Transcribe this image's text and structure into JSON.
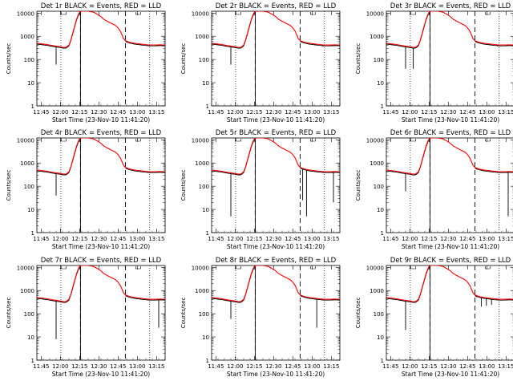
{
  "chart_data": [
    {
      "type": "line",
      "title": "Det 1r BLACK = Events, RED = LLD",
      "xlabel": "Start Time (23-Nov-10 11:41:20)",
      "ylabel": "Counts/sec",
      "xticks": [
        "11:45",
        "12:00",
        "12:15",
        "12:30",
        "12:45",
        "13:00",
        "13:15"
      ],
      "xrange_min": [
        0,
        100
      ],
      "ytick_labels": [
        "1",
        "10",
        "100",
        "1000",
        "10000"
      ],
      "ylim": [
        1,
        12000
      ],
      "yscale": "log",
      "vlines_dotted_min": [
        18.7,
        88
      ],
      "vlines_dashed_min": [
        34,
        69
      ],
      "events_dips": [
        [
          15,
          25,
          60
        ],
        [
          34,
          500,
          1
        ]
      ],
      "series": [
        {
          "name": "BLACK = Events",
          "color": "#000000"
        },
        {
          "name": "RED = LLD",
          "color": "#ff0000"
        }
      ]
    },
    {
      "type": "line",
      "title": "Det 2r BLACK = Events, RED = LLD",
      "xlabel": "Start Time (23-Nov-10 11:41:20)",
      "ylabel": "Counts/sec",
      "xticks": [
        "11:45",
        "12:00",
        "12:15",
        "12:30",
        "12:45",
        "13:00",
        "13:15"
      ],
      "xrange_min": [
        0,
        100
      ],
      "ytick_labels": [
        "1",
        "10",
        "100",
        "1000",
        "10000"
      ],
      "ylim": [
        1,
        12000
      ],
      "yscale": "log",
      "vlines_dotted_min": [
        18.7,
        88
      ],
      "vlines_dashed_min": [
        34,
        69
      ],
      "events_dips": [
        [
          15,
          25,
          60
        ],
        [
          34,
          500,
          1
        ]
      ],
      "series": [
        {
          "name": "BLACK = Events",
          "color": "#000000"
        },
        {
          "name": "RED = LLD",
          "color": "#ff0000"
        }
      ]
    },
    {
      "type": "line",
      "title": "Det 3r BLACK = Events, RED = LLD",
      "xlabel": "Start Time (23-Nov-10 11:41:20)",
      "ylabel": "Counts/sec",
      "xticks": [
        "11:45",
        "12:00",
        "12:15",
        "12:30",
        "12:45",
        "13:00",
        "13:15"
      ],
      "xrange_min": [
        0,
        100
      ],
      "ytick_labels": [
        "1",
        "10",
        "100",
        "1000",
        "10000"
      ],
      "ylim": [
        1,
        12000
      ],
      "yscale": "log",
      "vlines_dotted_min": [
        18.7,
        88
      ],
      "vlines_dashed_min": [
        34,
        69
      ],
      "events_dips": [
        [
          15,
          25,
          40
        ],
        [
          21,
          25,
          40
        ],
        [
          34,
          400,
          1
        ]
      ],
      "series": [
        {
          "name": "BLACK = Events",
          "color": "#000000"
        },
        {
          "name": "RED = LLD",
          "color": "#ff0000"
        }
      ]
    },
    {
      "type": "line",
      "title": "Det 4r BLACK = Events, RED = LLD",
      "xlabel": "Start Time (23-Nov-10 11:41:20)",
      "ylabel": "Counts/sec",
      "xticks": [
        "11:45",
        "12:00",
        "12:15",
        "12:30",
        "12:45",
        "13:00",
        "13:15"
      ],
      "xrange_min": [
        0,
        100
      ],
      "ytick_labels": [
        "1",
        "10",
        "100",
        "1000",
        "10000"
      ],
      "ylim": [
        1,
        12000
      ],
      "yscale": "log",
      "vlines_dotted_min": [
        18.7,
        88
      ],
      "vlines_dashed_min": [
        34,
        69
      ],
      "events_dips": [
        [
          15,
          25,
          40
        ],
        [
          34,
          500,
          1
        ]
      ],
      "series": [
        {
          "name": "BLACK = Events",
          "color": "#000000"
        },
        {
          "name": "RED = LLD",
          "color": "#ff0000"
        }
      ]
    },
    {
      "type": "line",
      "title": "Det 5r BLACK = Events, RED = LLD",
      "xlabel": "Start Time (23-Nov-10 11:41:20)",
      "ylabel": "Counts/sec",
      "xticks": [
        "11:45",
        "12:00",
        "12:15",
        "12:30",
        "12:45",
        "13:00",
        "13:15"
      ],
      "xrange_min": [
        0,
        100
      ],
      "ytick_labels": [
        "1",
        "10",
        "100",
        "1000",
        "10000"
      ],
      "ylim": [
        1,
        12000
      ],
      "yscale": "log",
      "vlines_dotted_min": [
        18.7,
        88
      ],
      "vlines_dashed_min": [
        34,
        69
      ],
      "events_dips": [
        [
          15,
          25,
          5
        ],
        [
          34,
          500,
          1
        ],
        [
          71,
          40,
          25
        ],
        [
          74,
          40,
          5
        ],
        [
          95,
          40,
          20
        ]
      ],
      "series": [
        {
          "name": "BLACK = Events",
          "color": "#000000"
        },
        {
          "name": "RED = LLD",
          "color": "#ff0000"
        }
      ]
    },
    {
      "type": "line",
      "title": "Det 6r BLACK = Events, RED = LLD",
      "xlabel": "Start Time (23-Nov-10 11:41:20)",
      "ylabel": "Counts/sec",
      "xticks": [
        "11:45",
        "12:00",
        "12:15",
        "12:30",
        "12:45",
        "13:00",
        "13:15"
      ],
      "xrange_min": [
        0,
        100
      ],
      "ytick_labels": [
        "1",
        "10",
        "100",
        "1000",
        "10000"
      ],
      "ylim": [
        1,
        12000
      ],
      "yscale": "log",
      "vlines_dotted_min": [
        18.7,
        88
      ],
      "vlines_dashed_min": [
        34,
        69
      ],
      "events_dips": [
        [
          15,
          25,
          60
        ],
        [
          34,
          500,
          1
        ],
        [
          95,
          40,
          5
        ]
      ],
      "series": [
        {
          "name": "BLACK = Events",
          "color": "#000000"
        },
        {
          "name": "RED = LLD",
          "color": "#ff0000"
        }
      ]
    },
    {
      "type": "line",
      "title": "Det 7r BLACK = Events, RED = LLD",
      "xlabel": "Start Time (23-Nov-10 11:41:20)",
      "ylabel": "Counts/sec",
      "xticks": [
        "11:45",
        "12:00",
        "12:15",
        "12:30",
        "12:45",
        "13:00",
        "13:15"
      ],
      "xrange_min": [
        0,
        100
      ],
      "ytick_labels": [
        "1",
        "10",
        "100",
        "1000",
        "10000"
      ],
      "ylim": [
        1,
        12000
      ],
      "yscale": "log",
      "vlines_dotted_min": [
        18.7,
        88
      ],
      "vlines_dashed_min": [
        34,
        69
      ],
      "events_dips": [
        [
          15,
          25,
          8
        ],
        [
          34,
          500,
          1
        ],
        [
          95,
          40,
          25
        ]
      ],
      "series": [
        {
          "name": "BLACK = Events",
          "color": "#000000"
        },
        {
          "name": "RED = LLD",
          "color": "#ff0000"
        }
      ]
    },
    {
      "type": "line",
      "title": "Det 8r BLACK = Events, RED = LLD",
      "xlabel": "Start Time (23-Nov-10 11:41:20)",
      "ylabel": "Counts/sec",
      "xticks": [
        "11:45",
        "12:00",
        "12:15",
        "12:30",
        "12:45",
        "13:00",
        "13:15"
      ],
      "xrange_min": [
        0,
        100
      ],
      "ytick_labels": [
        "1",
        "10",
        "100",
        "1000",
        "10000"
      ],
      "ylim": [
        1,
        12000
      ],
      "yscale": "log",
      "vlines_dotted_min": [
        18.7,
        88
      ],
      "vlines_dashed_min": [
        34,
        69
      ],
      "events_dips": [
        [
          15,
          25,
          60
        ],
        [
          34,
          500,
          1
        ],
        [
          82,
          40,
          25
        ]
      ],
      "series": [
        {
          "name": "BLACK = Events",
          "color": "#000000"
        },
        {
          "name": "RED = LLD",
          "color": "#ff0000"
        }
      ]
    },
    {
      "type": "line",
      "title": "Det 9r BLACK = Events, RED = LLD",
      "xlabel": "Start Time (23-Nov-10 11:41:20)",
      "ylabel": "Counts/sec",
      "xticks": [
        "11:45",
        "12:00",
        "12:15",
        "12:30",
        "12:45",
        "13:00",
        "13:15"
      ],
      "xrange_min": [
        0,
        100
      ],
      "ytick_labels": [
        "1",
        "10",
        "100",
        "1000",
        "10000"
      ],
      "ylim": [
        1,
        12000
      ],
      "yscale": "log",
      "vlines_dotted_min": [
        18.7,
        88
      ],
      "vlines_dashed_min": [
        34,
        69
      ],
      "events_dips": [
        [
          15,
          25,
          20
        ],
        [
          34,
          500,
          1
        ],
        [
          74,
          40,
          200
        ],
        [
          78,
          40,
          220
        ],
        [
          82,
          40,
          240
        ]
      ],
      "series": [
        {
          "name": "BLACK = Events",
          "color": "#000000"
        },
        {
          "name": "RED = LLD",
          "color": "#ff0000"
        }
      ]
    }
  ]
}
